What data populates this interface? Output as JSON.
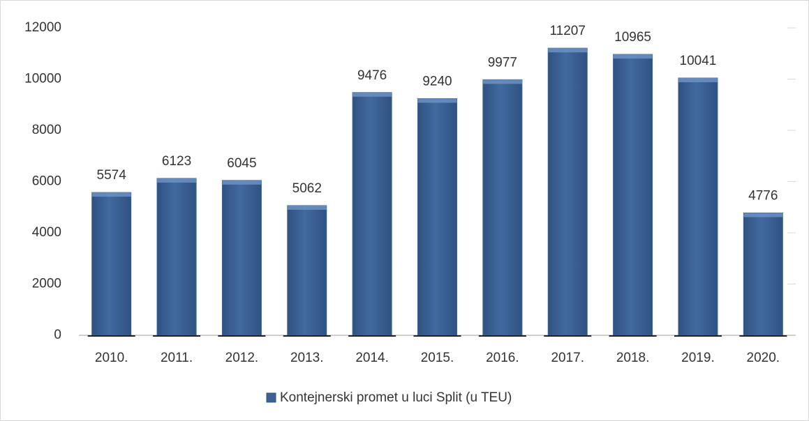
{
  "chart_data": {
    "type": "bar",
    "categories": [
      "2010.",
      "2011.",
      "2012.",
      "2013.",
      "2014.",
      "2015.",
      "2016.",
      "2017.",
      "2018.",
      "2019.",
      "2020."
    ],
    "series": [
      {
        "name": "Kontejnerski promet u luci Split (u TEU)",
        "color": "#3b6195",
        "values": [
          5574,
          6123,
          6045,
          5062,
          9476,
          9240,
          9977,
          11207,
          10965,
          10041,
          4776
        ]
      }
    ],
    "ylim": [
      0,
      12000
    ],
    "yticks": [
      0,
      2000,
      4000,
      6000,
      8000,
      10000,
      12000
    ],
    "legend": "bottom"
  }
}
